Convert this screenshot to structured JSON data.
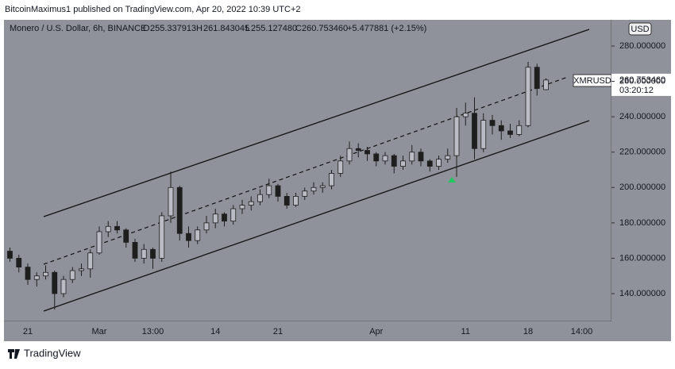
{
  "header": {
    "publisher": "BitcoinMaximus1 published on TradingView.com, Apr 20, 2022 10:39 UTC+2",
    "footer": "TradingView"
  },
  "chart_data": {
    "type": "candlestick",
    "legend": {
      "symbol": "Monero / U.S. Dollar, 6h, BINANCE",
      "o_label": "O",
      "o": "255.337913",
      "h_label": "H",
      "h": "261.843045",
      "l_label": "L",
      "l": "255.127480",
      "c_label": "C",
      "c": "260.753460",
      "change": "+5.477881 (+2.15%)"
    },
    "currency": "USD",
    "last_price": {
      "symbol": "XMRUSD",
      "value": 260.75346,
      "label": "260.753460",
      "countdown": "03:20:12"
    },
    "categories": [
      null,
      null,
      "21",
      null,
      null,
      null,
      null,
      null,
      null,
      null,
      "Mar",
      null,
      null,
      null,
      null,
      null,
      "13:00",
      null,
      null,
      null,
      null,
      null,
      null,
      "14",
      null,
      null,
      null,
      null,
      null,
      null,
      "21",
      null,
      null,
      null,
      null,
      null,
      null,
      null,
      null,
      null,
      null,
      "Apr",
      null,
      null,
      null,
      null,
      null,
      null,
      null,
      null,
      null,
      "11",
      null,
      null,
      null,
      null,
      null,
      null,
      "18",
      null,
      null,
      null,
      null,
      null,
      "14:00",
      null
    ],
    "open": [
      164,
      160,
      155,
      148,
      150,
      152,
      140,
      148,
      153,
      154,
      163,
      175,
      178,
      176,
      169,
      160,
      165,
      160,
      184,
      200,
      174,
      170,
      176,
      180,
      185,
      181,
      188,
      190,
      192,
      196,
      201,
      195,
      190,
      195,
      198,
      200,
      201,
      208,
      215,
      222,
      221,
      219,
      215,
      218,
      212,
      215,
      220,
      215,
      212,
      216,
      218,
      240,
      242,
      222,
      238,
      235,
      232,
      230,
      235,
      268,
      255.337913,
      null,
      null,
      null,
      null,
      null
    ],
    "high": [
      166,
      162,
      157,
      152,
      156,
      153,
      150,
      155,
      157,
      165,
      178,
      181,
      181,
      177,
      171,
      168,
      166,
      186,
      209,
      201,
      178,
      178,
      184,
      188,
      186,
      190,
      193,
      195,
      199,
      205,
      202,
      197,
      197,
      200,
      203,
      203,
      210,
      218,
      226,
      225,
      223,
      220,
      220,
      219,
      218,
      224,
      222,
      216,
      218,
      222,
      245,
      248,
      251,
      242,
      241,
      238,
      236,
      238,
      271,
      270,
      261.843045,
      null,
      null,
      null,
      null,
      null
    ],
    "low": [
      158,
      152,
      145,
      144,
      148,
      131,
      138,
      146,
      150,
      149,
      162,
      172,
      174,
      166,
      158,
      157,
      154,
      158,
      180,
      170,
      166,
      168,
      174,
      177,
      178,
      179,
      185,
      187,
      190,
      194,
      192,
      188,
      189,
      193,
      196,
      197,
      199,
      206,
      213,
      217,
      215,
      212,
      213,
      208,
      210,
      213,
      212,
      209,
      210,
      214,
      206,
      235,
      216,
      220,
      230,
      227,
      228,
      229,
      234,
      252,
      255.12748,
      null,
      null,
      null,
      null,
      null
    ],
    "close": [
      160,
      155,
      148,
      150,
      152,
      140,
      148,
      153,
      154,
      163,
      175,
      178,
      176,
      169,
      160,
      165,
      160,
      184,
      200,
      174,
      170,
      176,
      180,
      185,
      181,
      188,
      190,
      192,
      196,
      201,
      195,
      190,
      195,
      198,
      200,
      201,
      208,
      215,
      222,
      221,
      219,
      215,
      218,
      212,
      215,
      220,
      215,
      212,
      216,
      218,
      240,
      242,
      222,
      238,
      235,
      232,
      230,
      235,
      268,
      256,
      260.75346,
      null,
      null,
      null,
      null,
      null
    ],
    "color": "#1e1e1e",
    "ylim": [
      124.3,
      294.8
    ],
    "yticks": [
      {
        "value": 140,
        "label": "140.000000"
      },
      {
        "value": 160,
        "label": "160.000000"
      },
      {
        "value": 180,
        "label": "180.000000"
      },
      {
        "value": 200,
        "label": "200.000000"
      },
      {
        "value": 220,
        "label": "220.000000"
      },
      {
        "value": 240,
        "label": "240.000000"
      },
      {
        "value": 260,
        "label": "260.000000"
      },
      {
        "value": 280,
        "label": "280.000000"
      }
    ]
  }
}
